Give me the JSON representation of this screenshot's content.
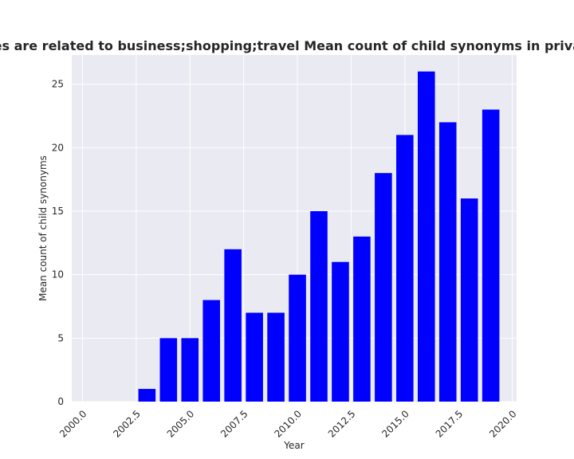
{
  "chart_data": {
    "type": "bar",
    "title": "Categories are related to business;shopping;travel Mean count of child synonyms in privacy policies",
    "xlabel": "Year",
    "ylabel": "Mean count of child synonyms",
    "x": [
      2003,
      2004,
      2005,
      2006,
      2007,
      2008,
      2009,
      2010,
      2011,
      2012,
      2013,
      2014,
      2015,
      2016,
      2017,
      2018,
      2019
    ],
    "values": [
      1,
      5,
      5,
      8,
      12,
      7,
      7,
      10,
      15,
      11,
      13,
      18,
      21,
      26,
      22,
      16,
      23
    ],
    "xlim": [
      1999.5,
      2020.2
    ],
    "ylim": [
      0,
      27.3
    ],
    "xticks": [
      2000.0,
      2002.5,
      2005.0,
      2007.5,
      2010.0,
      2012.5,
      2015.0,
      2017.5,
      2020.0
    ],
    "xtick_labels": [
      "2000.0",
      "2002.5",
      "2005.0",
      "2007.5",
      "2010.0",
      "2012.5",
      "2015.0",
      "2017.5",
      "2020.0"
    ],
    "yticks": [
      0,
      5,
      10,
      15,
      20,
      25
    ],
    "ytick_labels": [
      "0",
      "5",
      "10",
      "15",
      "20",
      "25"
    ],
    "bar_width": 0.8,
    "grid": true,
    "colors": {
      "bar": "#0000ff",
      "plot_background": "#eaeaf2",
      "grid": "#ffffff",
      "text": "#262626"
    }
  }
}
